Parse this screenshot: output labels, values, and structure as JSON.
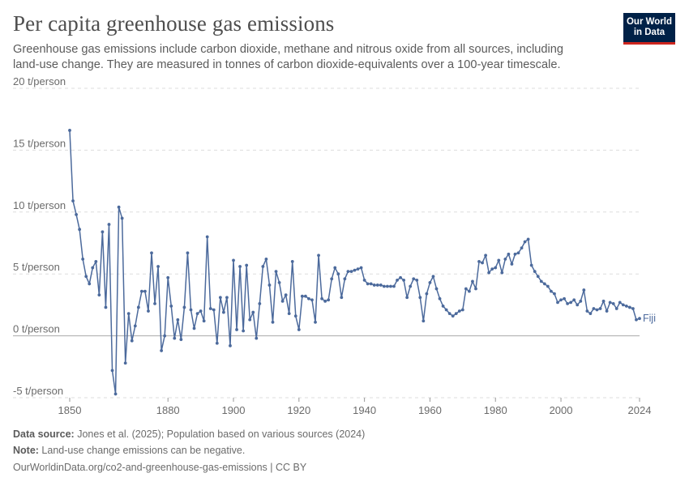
{
  "header": {
    "title": "Per capita greenhouse gas emissions",
    "subtitle": "Greenhouse gas emissions include carbon dioxide, methane and nitrous oxide from all sources, including land-use change. They are measured in tonnes of carbon dioxide-equivalents over a 100-year timescale.",
    "logo_line1": "Our World",
    "logo_line2": "in Data"
  },
  "footer": {
    "source_label": "Data source:",
    "source_text": " Jones et al. (2025); Population based on various sources (2024)",
    "note_label": "Note:",
    "note_text": " Land-use change emissions can be negative.",
    "url": "OurWorldinData.org/co2-and-greenhouse-gas-emissions | CC BY"
  },
  "colors": {
    "line": "#4c6a9c",
    "grid": "#dddddd",
    "zero": "#aaaaaa"
  },
  "chart_data": {
    "type": "line",
    "title": "Per capita greenhouse gas emissions",
    "ylabel": "",
    "xlabel": "",
    "ylim": [
      -5,
      20
    ],
    "xlim": [
      1850,
      2024
    ],
    "yticks": [
      -5,
      0,
      5,
      10,
      15,
      20
    ],
    "ytick_labels": [
      "-5 t/person",
      "0 t/person",
      "5 t/person",
      "10 t/person",
      "15 t/person",
      "20 t/person"
    ],
    "xticks": [
      1850,
      1880,
      1900,
      1920,
      1940,
      1960,
      1980,
      2000,
      2024
    ],
    "xtick_labels": [
      "1850",
      "1880",
      "1900",
      "1920",
      "1940",
      "1960",
      "1980",
      "2000",
      "2024"
    ],
    "grid": true,
    "series": [
      {
        "name": "Fiji",
        "x": [
          1850,
          1851,
          1852,
          1853,
          1854,
          1855,
          1856,
          1857,
          1858,
          1859,
          1860,
          1861,
          1862,
          1863,
          1864,
          1865,
          1866,
          1867,
          1868,
          1869,
          1870,
          1871,
          1872,
          1873,
          1874,
          1875,
          1876,
          1877,
          1878,
          1879,
          1880,
          1881,
          1882,
          1883,
          1884,
          1885,
          1886,
          1887,
          1888,
          1889,
          1890,
          1891,
          1892,
          1893,
          1894,
          1895,
          1896,
          1897,
          1898,
          1899,
          1900,
          1901,
          1902,
          1903,
          1904,
          1905,
          1906,
          1907,
          1908,
          1909,
          1910,
          1911,
          1912,
          1913,
          1914,
          1915,
          1916,
          1917,
          1918,
          1919,
          1920,
          1921,
          1922,
          1923,
          1924,
          1925,
          1926,
          1927,
          1928,
          1929,
          1930,
          1931,
          1932,
          1933,
          1934,
          1935,
          1936,
          1937,
          1938,
          1939,
          1940,
          1941,
          1942,
          1943,
          1944,
          1945,
          1946,
          1947,
          1948,
          1949,
          1950,
          1951,
          1952,
          1953,
          1954,
          1955,
          1956,
          1957,
          1958,
          1959,
          1960,
          1961,
          1962,
          1963,
          1964,
          1965,
          1966,
          1967,
          1968,
          1969,
          1970,
          1971,
          1972,
          1973,
          1974,
          1975,
          1976,
          1977,
          1978,
          1979,
          1980,
          1981,
          1982,
          1983,
          1984,
          1985,
          1986,
          1987,
          1988,
          1989,
          1990,
          1991,
          1992,
          1993,
          1994,
          1995,
          1996,
          1997,
          1998,
          1999,
          2000,
          2001,
          2002,
          2003,
          2004,
          2005,
          2006,
          2007,
          2008,
          2009,
          2010,
          2011,
          2012,
          2013,
          2014,
          2015,
          2016,
          2017,
          2018,
          2019,
          2020,
          2021,
          2022,
          2023,
          2024
        ],
        "values": [
          16.6,
          10.9,
          9.8,
          8.6,
          6.2,
          4.8,
          4.2,
          5.5,
          6.0,
          3.3,
          8.4,
          2.3,
          9.0,
          -2.8,
          -4.7,
          10.4,
          9.5,
          -2.2,
          1.8,
          -0.4,
          0.8,
          2.3,
          3.6,
          3.6,
          2.0,
          6.7,
          2.6,
          5.6,
          -1.2,
          0.0,
          4.7,
          2.4,
          -0.2,
          1.3,
          -0.3,
          2.3,
          6.7,
          2.1,
          0.6,
          1.8,
          2.0,
          1.2,
          8.0,
          2.2,
          2.1,
          -0.6,
          3.1,
          1.9,
          3.1,
          -0.8,
          6.1,
          0.5,
          5.6,
          0.4,
          5.7,
          1.3,
          1.9,
          -0.2,
          2.6,
          5.6,
          6.2,
          4.1,
          1.1,
          5.2,
          4.3,
          2.8,
          3.3,
          1.8,
          6.0,
          1.6,
          0.5,
          3.2,
          3.2,
          3.0,
          2.9,
          1.1,
          6.5,
          3.0,
          2.8,
          2.9,
          4.6,
          5.5,
          5.0,
          3.1,
          4.6,
          5.2,
          5.2,
          5.3,
          5.4,
          5.5,
          4.5,
          4.2,
          4.2,
          4.1,
          4.1,
          4.1,
          4.0,
          4.0,
          4.0,
          4.0,
          4.5,
          4.7,
          4.5,
          3.1,
          4.0,
          4.6,
          4.5,
          3.1,
          1.2,
          3.4,
          4.3,
          4.8,
          3.8,
          3.0,
          2.4,
          2.1,
          1.8,
          1.6,
          1.8,
          2.0,
          2.1,
          3.8,
          3.6,
          4.4,
          3.8,
          6.0,
          5.9,
          6.5,
          5.1,
          5.4,
          5.5,
          6.1,
          5.1,
          6.2,
          6.6,
          5.8,
          6.6,
          6.7,
          7.1,
          7.6,
          7.8,
          5.7,
          5.2,
          4.8,
          4.4,
          4.2,
          4.0,
          3.6,
          3.4,
          2.7,
          2.9,
          3.0,
          2.6,
          2.7,
          2.9,
          2.5,
          2.8,
          3.7,
          2.0,
          1.8,
          2.2,
          2.1,
          2.2,
          2.8,
          2.0,
          2.7,
          2.6,
          2.2,
          2.7,
          2.5,
          2.4,
          2.3,
          2.2,
          1.3,
          1.4
        ]
      }
    ]
  }
}
